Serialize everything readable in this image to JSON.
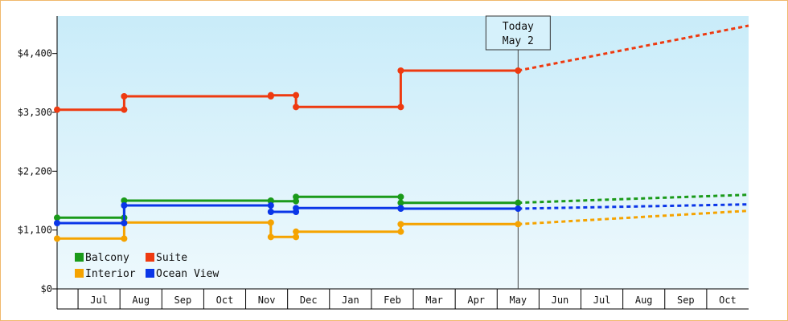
{
  "chart_data": {
    "type": "line",
    "step": true,
    "today_marker": {
      "line1": "Today",
      "line2": "May 2",
      "x": 11.0
    },
    "y_ticks": [
      "$0",
      "$1,100",
      "$2,200",
      "$3,300",
      "$4,400"
    ],
    "y_tick_values": [
      0,
      1100,
      2200,
      3300,
      4400
    ],
    "ylim": [
      0,
      5100
    ],
    "x_tick_labels": [
      "Jul",
      "Aug",
      "Sep",
      "Oct",
      "Nov",
      "Dec",
      "Jan",
      "Feb",
      "Mar",
      "Apr",
      "May",
      "Jun",
      "Jul",
      "Aug",
      "Sep",
      "Oct"
    ],
    "x_month_index": [
      1,
      2,
      3,
      4,
      5,
      6,
      7,
      8,
      9,
      10,
      11,
      12,
      13,
      14,
      15,
      16
    ],
    "xlim": [
      0,
      16.5
    ],
    "grid": false,
    "legend_position": "bottom-left",
    "background_gradient": [
      "#c9ecf9",
      "#eef9fd"
    ],
    "series": [
      {
        "name": "Balcony",
        "color": "#1a9a1a",
        "steps": [
          [
            0,
            1330
          ],
          [
            1.6,
            1330
          ],
          [
            1.6,
            1650
          ],
          [
            5.1,
            1650
          ],
          [
            5.1,
            1640
          ],
          [
            5.7,
            1640
          ],
          [
            5.7,
            1720
          ],
          [
            8.2,
            1720
          ],
          [
            8.2,
            1610
          ],
          [
            11.0,
            1610
          ]
        ],
        "markers": [
          [
            0,
            1330
          ],
          [
            1.6,
            1330
          ],
          [
            1.6,
            1650
          ],
          [
            5.1,
            1650
          ],
          [
            5.1,
            1640
          ],
          [
            5.7,
            1640
          ],
          [
            5.7,
            1720
          ],
          [
            8.2,
            1720
          ],
          [
            8.2,
            1610
          ],
          [
            11.0,
            1610
          ]
        ],
        "projection": [
          [
            11.0,
            1610
          ],
          [
            16.5,
            1760
          ]
        ]
      },
      {
        "name": "Suite",
        "color": "#ee3a10",
        "steps": [
          [
            0,
            3350
          ],
          [
            1.6,
            3350
          ],
          [
            1.6,
            3600
          ],
          [
            5.1,
            3600
          ],
          [
            5.1,
            3620
          ],
          [
            5.7,
            3620
          ],
          [
            5.7,
            3400
          ],
          [
            8.2,
            3400
          ],
          [
            8.2,
            4080
          ],
          [
            11.0,
            4080
          ]
        ],
        "markers": [
          [
            0,
            3350
          ],
          [
            1.6,
            3350
          ],
          [
            1.6,
            3600
          ],
          [
            5.1,
            3600
          ],
          [
            5.1,
            3620
          ],
          [
            5.7,
            3620
          ],
          [
            5.7,
            3400
          ],
          [
            8.2,
            3400
          ],
          [
            8.2,
            4080
          ],
          [
            11.0,
            4080
          ]
        ],
        "projection": [
          [
            11.0,
            4080
          ],
          [
            16.5,
            4920
          ]
        ]
      },
      {
        "name": "Interior",
        "color": "#f5a300",
        "steps": [
          [
            0,
            940
          ],
          [
            1.6,
            940
          ],
          [
            1.6,
            1240
          ],
          [
            5.1,
            1240
          ],
          [
            5.1,
            970
          ],
          [
            5.7,
            970
          ],
          [
            5.7,
            1070
          ],
          [
            8.2,
            1070
          ],
          [
            8.2,
            1210
          ],
          [
            11.0,
            1210
          ]
        ],
        "markers": [
          [
            0,
            940
          ],
          [
            1.6,
            940
          ],
          [
            1.6,
            1240
          ],
          [
            5.1,
            1240
          ],
          [
            5.1,
            970
          ],
          [
            5.7,
            970
          ],
          [
            5.7,
            1070
          ],
          [
            8.2,
            1070
          ],
          [
            8.2,
            1210
          ],
          [
            11.0,
            1210
          ]
        ],
        "projection": [
          [
            11.0,
            1210
          ],
          [
            16.5,
            1460
          ]
        ]
      },
      {
        "name": "Ocean View",
        "color": "#0a36e8",
        "steps": [
          [
            0,
            1230
          ],
          [
            1.6,
            1230
          ],
          [
            1.6,
            1560
          ],
          [
            5.1,
            1560
          ],
          [
            5.1,
            1440
          ],
          [
            5.7,
            1440
          ],
          [
            5.7,
            1510
          ],
          [
            8.2,
            1510
          ],
          [
            8.2,
            1500
          ],
          [
            11.0,
            1500
          ]
        ],
        "markers": [
          [
            0,
            1230
          ],
          [
            1.6,
            1230
          ],
          [
            1.6,
            1560
          ],
          [
            5.1,
            1560
          ],
          [
            5.1,
            1440
          ],
          [
            5.7,
            1440
          ],
          [
            5.7,
            1510
          ],
          [
            8.2,
            1510
          ],
          [
            8.2,
            1500
          ],
          [
            11.0,
            1500
          ]
        ],
        "projection": [
          [
            11.0,
            1500
          ],
          [
            16.5,
            1580
          ]
        ]
      }
    ],
    "legend": [
      {
        "name": "Balcony",
        "color": "#1a9a1a"
      },
      {
        "name": "Suite",
        "color": "#ee3a10"
      },
      {
        "name": "Interior",
        "color": "#f5a300"
      },
      {
        "name": "Ocean View",
        "color": "#0a36e8"
      }
    ]
  }
}
